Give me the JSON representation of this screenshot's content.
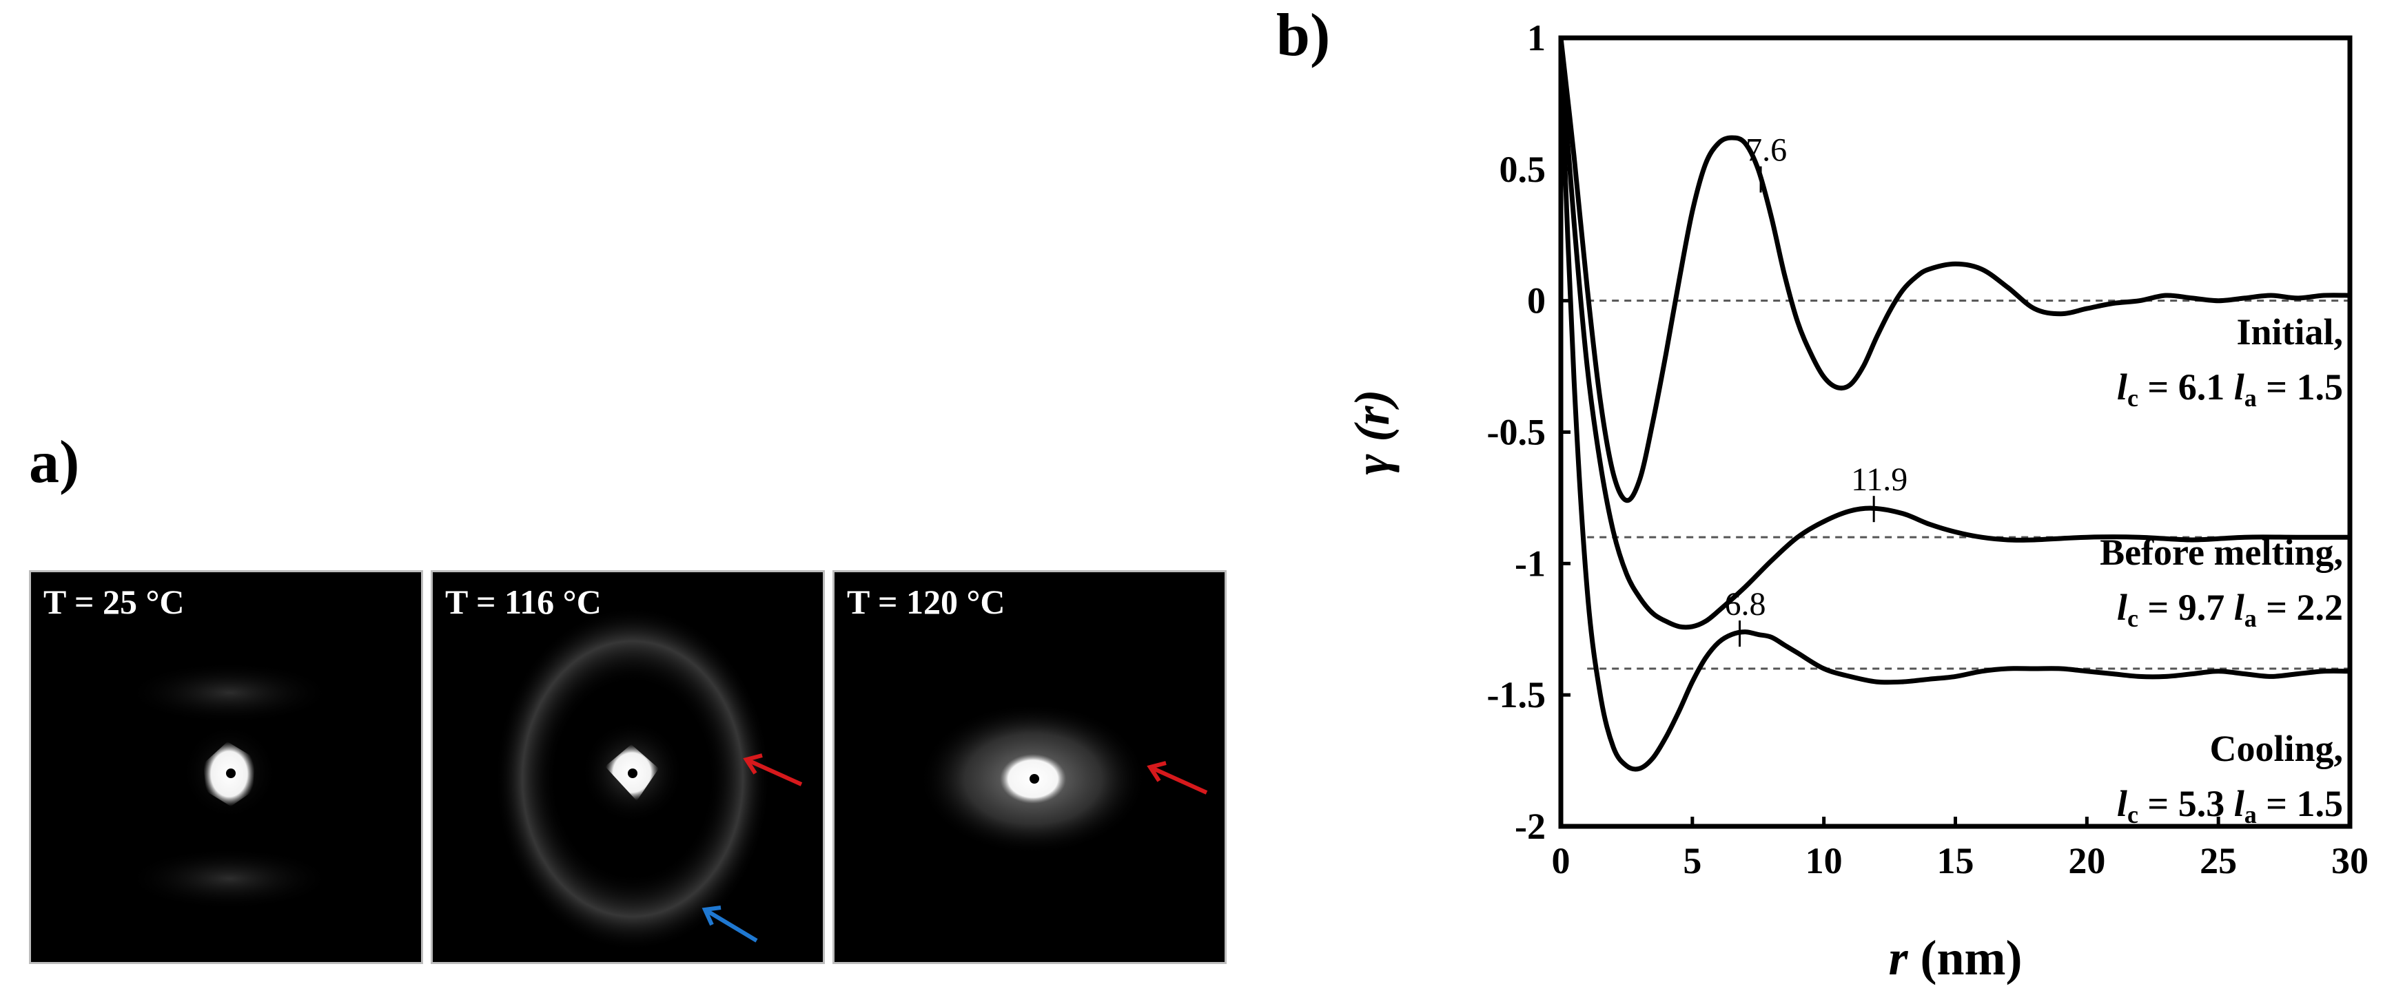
{
  "panel_labels": {
    "a": "a)",
    "b": "b)"
  },
  "saxs_patterns": [
    {
      "label": "T = 25 °C",
      "arrows": []
    },
    {
      "label": "T = 116 °C",
      "arrows": [
        "red",
        "blue"
      ]
    },
    {
      "label": "T = 120 °C",
      "arrows": [
        "red"
      ]
    }
  ],
  "colors": {
    "arrow_red": "#d7191c",
    "arrow_blue": "#1f78d1",
    "curve": "#000000",
    "baseline": "#555555"
  },
  "chart_data": {
    "type": "line",
    "xlabel_var": "r",
    "xlabel_unit": " (nm)",
    "ylabel_var": "γ (r)",
    "xlim": [
      0,
      30
    ],
    "ylim": [
      -2,
      1
    ],
    "xticks": [
      0,
      5,
      10,
      15,
      20,
      25,
      30
    ],
    "yticks": [
      1,
      0.5,
      0,
      -0.5,
      -1,
      -1.5,
      -2
    ],
    "grid": false,
    "series": [
      {
        "name": "Initial,",
        "lc_label": "l",
        "lc_sub": "c",
        "lc_value": " = 6.1",
        "la_label": "l",
        "la_sub": "a",
        "la_value": " = 1.5",
        "baseline": 0,
        "peak": {
          "x": 7.6,
          "label": "7.6"
        },
        "x": [
          0,
          0.5,
          1,
          1.5,
          2,
          2.5,
          3,
          3.5,
          4,
          4.5,
          5,
          5.5,
          6,
          6.5,
          7,
          7.5,
          8,
          8.5,
          9,
          9.5,
          10,
          10.5,
          11,
          11.5,
          12,
          12.5,
          13,
          13.5,
          14,
          15,
          16,
          17,
          18,
          19,
          20,
          21,
          22,
          23,
          24,
          25,
          26,
          27,
          28,
          29,
          30
        ],
        "y": [
          1,
          0.55,
          0.05,
          -0.38,
          -0.66,
          -0.76,
          -0.68,
          -0.46,
          -0.2,
          0.08,
          0.34,
          0.52,
          0.6,
          0.62,
          0.6,
          0.5,
          0.32,
          0.1,
          -0.08,
          -0.2,
          -0.29,
          -0.33,
          -0.32,
          -0.25,
          -0.14,
          -0.04,
          0.04,
          0.09,
          0.12,
          0.14,
          0.12,
          0.05,
          -0.03,
          -0.05,
          -0.03,
          -0.01,
          0,
          0.02,
          0.01,
          0,
          0.01,
          0.02,
          0.01,
          0.02,
          0.02
        ]
      },
      {
        "name": "Before melting,",
        "lc_label": "l",
        "lc_sub": "c",
        "lc_value": " = 9.7",
        "la_label": "l",
        "la_sub": "a",
        "la_value": " = 2.2",
        "baseline": -0.9,
        "peak": {
          "x": 11.9,
          "label": "11.9"
        },
        "x": [
          0,
          0.5,
          1,
          1.5,
          2,
          2.5,
          3,
          3.5,
          4,
          4.5,
          5,
          5.5,
          6,
          7,
          8,
          9,
          10,
          11,
          11.9,
          13,
          14,
          15,
          16,
          17,
          18,
          20,
          22,
          24,
          26,
          28,
          30
        ],
        "y": [
          0.95,
          0.3,
          -0.25,
          -0.62,
          -0.88,
          -1.04,
          -1.13,
          -1.19,
          -1.22,
          -1.24,
          -1.24,
          -1.22,
          -1.18,
          -1.09,
          -0.99,
          -0.9,
          -0.84,
          -0.8,
          -0.79,
          -0.81,
          -0.85,
          -0.88,
          -0.9,
          -0.91,
          -0.91,
          -0.9,
          -0.9,
          -0.91,
          -0.9,
          -0.9,
          -0.9
        ]
      },
      {
        "name": "Cooling,",
        "lc_label": "l",
        "lc_sub": "c",
        "lc_value": " = 5.3",
        "la_label": "l",
        "la_sub": "a",
        "la_value": " = 1.5",
        "baseline": -1.4,
        "peak": {
          "x": 6.8,
          "label": "6.8"
        },
        "x": [
          0,
          0.5,
          1,
          1.5,
          2,
          2.5,
          3,
          3.5,
          4,
          4.5,
          5,
          5.5,
          6,
          6.5,
          7,
          7.5,
          8,
          8.5,
          9,
          10,
          11,
          12,
          13,
          14,
          15,
          16,
          17,
          18,
          19,
          20,
          21,
          22,
          23,
          24,
          25,
          26,
          27,
          28,
          29,
          30
        ],
        "y": [
          0.9,
          -0.3,
          -1.1,
          -1.5,
          -1.7,
          -1.77,
          -1.78,
          -1.74,
          -1.66,
          -1.56,
          -1.45,
          -1.36,
          -1.3,
          -1.27,
          -1.26,
          -1.27,
          -1.28,
          -1.31,
          -1.34,
          -1.4,
          -1.43,
          -1.45,
          -1.45,
          -1.44,
          -1.43,
          -1.41,
          -1.4,
          -1.4,
          -1.4,
          -1.41,
          -1.42,
          -1.43,
          -1.43,
          -1.42,
          -1.41,
          -1.42,
          -1.43,
          -1.42,
          -1.41,
          -1.41
        ]
      }
    ]
  }
}
